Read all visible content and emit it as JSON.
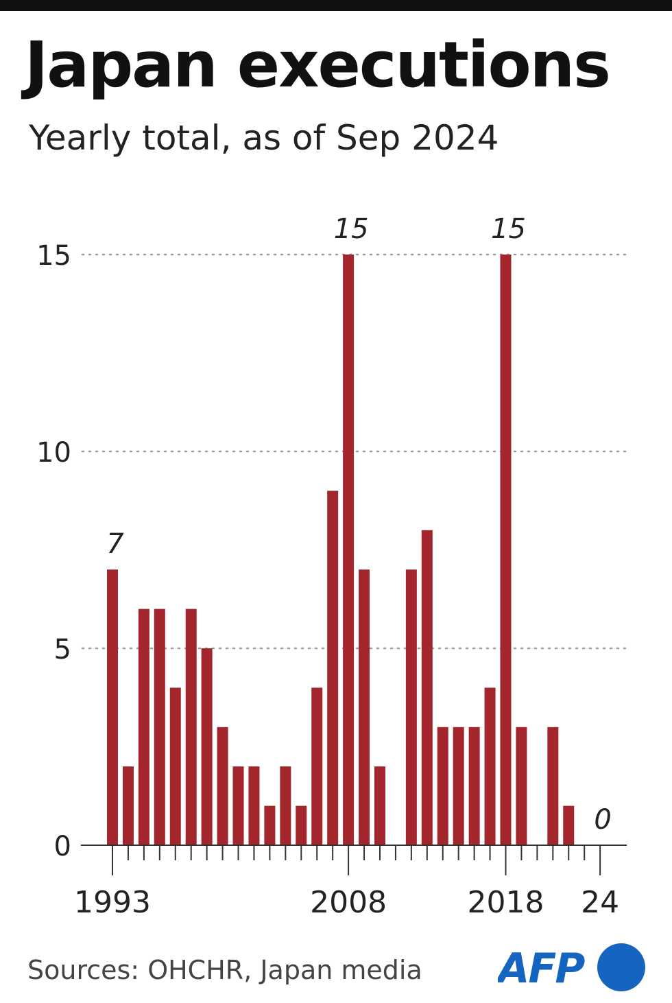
{
  "header": {
    "title": "Japan executions",
    "subtitle": "Yearly total, as of Sep 2024"
  },
  "footer": {
    "source": "Sources: OHCHR, Japan media",
    "logo_text": "AFP"
  },
  "colors": {
    "bar": "#A3262C",
    "axis": "#333333",
    "grid": "#9a9a9a",
    "logo_blue": "#1565C0"
  },
  "chart_data": {
    "type": "bar",
    "title": "Japan executions",
    "subtitle": "Yearly total, as of Sep 2024",
    "xlabel": "",
    "ylabel": "",
    "ylim": [
      0,
      15
    ],
    "yticks": [
      0,
      5,
      10,
      15
    ],
    "grid": true,
    "categories": [
      1993,
      1994,
      1995,
      1996,
      1997,
      1998,
      1999,
      2000,
      2001,
      2002,
      2003,
      2004,
      2005,
      2006,
      2007,
      2008,
      2009,
      2010,
      2011,
      2012,
      2013,
      2014,
      2015,
      2016,
      2017,
      2018,
      2019,
      2020,
      2021,
      2022,
      2023,
      2024
    ],
    "values": [
      7,
      2,
      6,
      6,
      4,
      6,
      5,
      3,
      2,
      2,
      1,
      2,
      1,
      4,
      9,
      15,
      7,
      2,
      0,
      7,
      8,
      3,
      3,
      3,
      4,
      15,
      3,
      0,
      3,
      1,
      0,
      0
    ],
    "xtick_labels": [
      {
        "year": 1993,
        "label": "1993"
      },
      {
        "year": 2008,
        "label": "2008"
      },
      {
        "year": 2018,
        "label": "2018"
      },
      {
        "year": 2024,
        "label": "24"
      }
    ],
    "annotations": [
      {
        "year": 1993,
        "label": "7"
      },
      {
        "year": 2008,
        "label": "15"
      },
      {
        "year": 2018,
        "label": "15"
      },
      {
        "year": 2024,
        "label": "0"
      }
    ]
  }
}
